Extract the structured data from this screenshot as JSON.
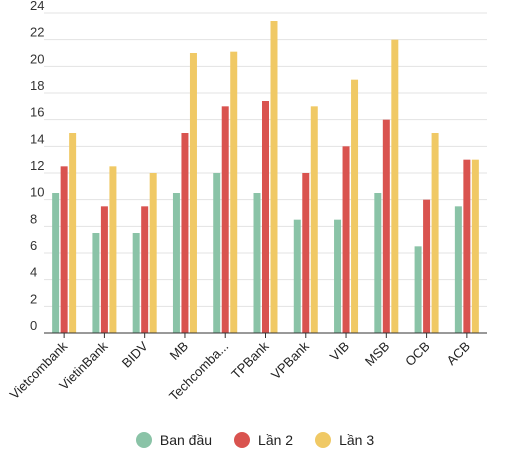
{
  "chart_data": {
    "type": "bar",
    "categories": [
      "Vietcombank",
      "VietinBank",
      "BIDV",
      "MB",
      "Techcomba...",
      "TPBank",
      "VPBank",
      "VIB",
      "MSB",
      "OCB",
      "ACB"
    ],
    "series": [
      {
        "name": "Ban đầu",
        "color": "#8ac3a7",
        "values": [
          10.5,
          7.5,
          7.5,
          10.5,
          12,
          10.5,
          8.5,
          8.5,
          10.5,
          6.5,
          9.5
        ]
      },
      {
        "name": "Lần 2",
        "color": "#d9534f",
        "values": [
          12.5,
          9.5,
          9.5,
          15,
          17,
          17.4,
          12,
          14,
          16,
          10,
          13
        ]
      },
      {
        "name": "Lần 3",
        "color": "#f0c965",
        "values": [
          15,
          12.5,
          12,
          21,
          21.1,
          23.4,
          17,
          19,
          22,
          15,
          13
        ]
      }
    ],
    "ylim": [
      0,
      24
    ],
    "yticks": [
      "0",
      "2",
      "4",
      "6",
      "8",
      "10",
      "12",
      "14",
      "16",
      "18",
      "20",
      "22",
      "24"
    ],
    "grid": true,
    "legend_position": "bottom"
  }
}
